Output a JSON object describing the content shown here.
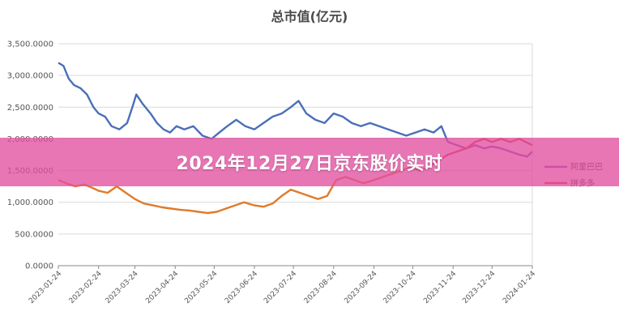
{
  "banner": {
    "text": "2024年12月27日京东股价实时"
  },
  "colors": {
    "jd": "#4a6fb8",
    "pdd": "#e07a2a",
    "alibaba": "#8e44ad",
    "pinduoduo": "#e03a3a",
    "banner": "#e250a0"
  },
  "chart_data": {
    "type": "line",
    "title": "总市值(亿元)",
    "ylim": [
      0,
      3500
    ],
    "yticks": [
      "0.0000",
      "500.0000",
      "1,000.0000",
      "1,500.0000",
      "2,000.0000",
      "2,500.0000",
      "3,000.0000",
      "3,500.0000"
    ],
    "ytick_values": [
      0,
      500,
      1000,
      1500,
      2000,
      2500,
      3000,
      3500
    ],
    "xticks": [
      "2023-01-24",
      "2023-02-24",
      "2023-03-24",
      "2023-04-24",
      "2023-05-24",
      "2023-06-24",
      "2023-07-24",
      "2023-08-24",
      "2023-09-24",
      "2023-10-24",
      "2023-11-24",
      "2023-12-24",
      "2024-01-24"
    ],
    "xlim": [
      "2023-01-24",
      "2024-01-24"
    ],
    "grid": true,
    "legend_position": "right",
    "series": [
      {
        "color": "#4a6fb8",
        "points": [
          [
            "2023-01-24",
            3200
          ],
          [
            "2023-01-28",
            3150
          ],
          [
            "2023-02-01",
            2950
          ],
          [
            "2023-02-05",
            2850
          ],
          [
            "2023-02-10",
            2800
          ],
          [
            "2023-02-15",
            2700
          ],
          [
            "2023-02-20",
            2500
          ],
          [
            "2023-02-24",
            2400
          ],
          [
            "2023-03-01",
            2350
          ],
          [
            "2023-03-06",
            2200
          ],
          [
            "2023-03-12",
            2150
          ],
          [
            "2023-03-18",
            2250
          ],
          [
            "2023-03-22",
            2500
          ],
          [
            "2023-03-25",
            2700
          ],
          [
            "2023-03-30",
            2550
          ],
          [
            "2023-04-05",
            2400
          ],
          [
            "2023-04-10",
            2250
          ],
          [
            "2023-04-15",
            2150
          ],
          [
            "2023-04-20",
            2100
          ],
          [
            "2023-04-25",
            2200
          ],
          [
            "2023-05-01",
            2150
          ],
          [
            "2023-05-08",
            2200
          ],
          [
            "2023-05-15",
            2050
          ],
          [
            "2023-05-22",
            2000
          ],
          [
            "2023-05-28",
            2100
          ],
          [
            "2023-06-03",
            2200
          ],
          [
            "2023-06-10",
            2300
          ],
          [
            "2023-06-17",
            2200
          ],
          [
            "2023-06-24",
            2150
          ],
          [
            "2023-07-01",
            2250
          ],
          [
            "2023-07-08",
            2350
          ],
          [
            "2023-07-15",
            2400
          ],
          [
            "2023-07-22",
            2500
          ],
          [
            "2023-07-28",
            2600
          ],
          [
            "2023-08-03",
            2400
          ],
          [
            "2023-08-10",
            2300
          ],
          [
            "2023-08-17",
            2250
          ],
          [
            "2023-08-24",
            2400
          ],
          [
            "2023-08-31",
            2350
          ],
          [
            "2023-09-07",
            2250
          ],
          [
            "2023-09-14",
            2200
          ],
          [
            "2023-09-21",
            2250
          ],
          [
            "2023-09-28",
            2200
          ],
          [
            "2023-10-05",
            2150
          ],
          [
            "2023-10-12",
            2100
          ],
          [
            "2023-10-19",
            2050
          ],
          [
            "2023-10-26",
            2100
          ],
          [
            "2023-11-02",
            2150
          ],
          [
            "2023-11-09",
            2100
          ],
          [
            "2023-11-15",
            2200
          ],
          [
            "2023-11-20",
            1950
          ]
        ]
      },
      {
        "color": "#e07a2a",
        "points": [
          [
            "2023-01-24",
            1350
          ],
          [
            "2023-01-30",
            1300
          ],
          [
            "2023-02-06",
            1250
          ],
          [
            "2023-02-13",
            1280
          ],
          [
            "2023-02-20",
            1220
          ],
          [
            "2023-02-24",
            1180
          ],
          [
            "2023-03-03",
            1150
          ],
          [
            "2023-03-10",
            1250
          ],
          [
            "2023-03-17",
            1150
          ],
          [
            "2023-03-24",
            1050
          ],
          [
            "2023-03-31",
            980
          ],
          [
            "2023-04-07",
            950
          ],
          [
            "2023-04-14",
            920
          ],
          [
            "2023-04-21",
            900
          ],
          [
            "2023-04-28",
            880
          ],
          [
            "2023-05-05",
            870
          ],
          [
            "2023-05-12",
            850
          ],
          [
            "2023-05-19",
            830
          ],
          [
            "2023-05-26",
            850
          ],
          [
            "2023-06-02",
            900
          ],
          [
            "2023-06-09",
            950
          ],
          [
            "2023-06-16",
            1000
          ],
          [
            "2023-06-24",
            950
          ],
          [
            "2023-07-01",
            930
          ],
          [
            "2023-07-08",
            980
          ],
          [
            "2023-07-15",
            1100
          ],
          [
            "2023-07-22",
            1200
          ],
          [
            "2023-07-29",
            1150
          ],
          [
            "2023-08-05",
            1100
          ],
          [
            "2023-08-12",
            1050
          ],
          [
            "2023-08-19",
            1100
          ],
          [
            "2023-08-26",
            1350
          ],
          [
            "2023-09-02",
            1400
          ],
          [
            "2023-09-09",
            1350
          ],
          [
            "2023-09-16",
            1300
          ],
          [
            "2023-09-24",
            1350
          ],
          [
            "2023-10-01",
            1400
          ],
          [
            "2023-10-08",
            1450
          ],
          [
            "2023-10-15",
            1500
          ],
          [
            "2023-10-22",
            1550
          ],
          [
            "2023-10-29",
            1500
          ]
        ]
      },
      {
        "name": "阿里巴巴",
        "color": "#8e44ad",
        "points": [
          [
            "2023-11-20",
            1950
          ],
          [
            "2023-11-27",
            1900
          ],
          [
            "2023-12-04",
            1850
          ],
          [
            "2023-12-11",
            1900
          ],
          [
            "2023-12-18",
            1850
          ],
          [
            "2023-12-24",
            1880
          ],
          [
            "2023-12-31",
            1850
          ],
          [
            "2024-01-07",
            1800
          ],
          [
            "2024-01-14",
            1750
          ],
          [
            "2024-01-20",
            1720
          ],
          [
            "2024-01-24",
            1800
          ]
        ]
      },
      {
        "name": "拼多多",
        "color": "#e03a3a",
        "points": [
          [
            "2023-10-29",
            1500
          ],
          [
            "2023-11-05",
            1550
          ],
          [
            "2023-11-12",
            1650
          ],
          [
            "2023-11-20",
            1750
          ],
          [
            "2023-11-27",
            1800
          ],
          [
            "2023-12-04",
            1850
          ],
          [
            "2023-12-11",
            1950
          ],
          [
            "2023-12-18",
            2000
          ],
          [
            "2023-12-24",
            1950
          ],
          [
            "2023-12-31",
            2000
          ],
          [
            "2024-01-07",
            1950
          ],
          [
            "2024-01-14",
            2000
          ],
          [
            "2024-01-24",
            1900
          ]
        ]
      }
    ]
  }
}
